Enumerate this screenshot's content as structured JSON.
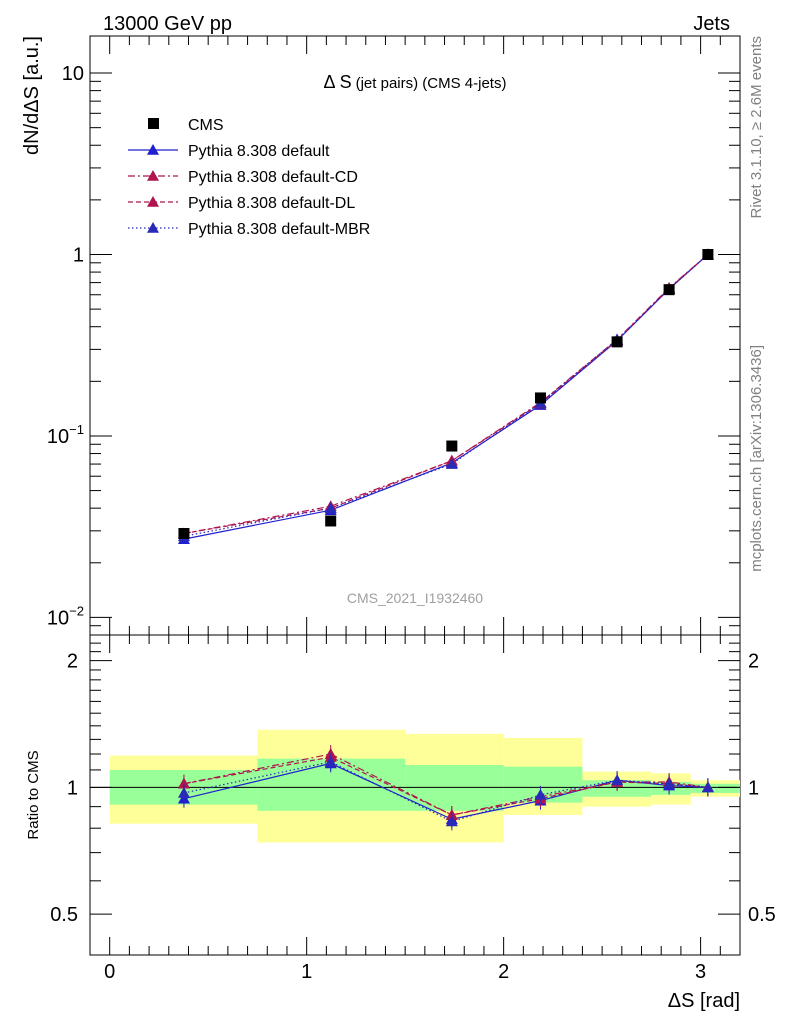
{
  "header": {
    "energy_label": "13000 GeV pp",
    "process_label": "Jets",
    "side_label_top": "Rivet 3.1.10, ≥ 2.6M events",
    "side_label_bottom": "mcplots.cern.ch [arXiv:1306.3436]",
    "watermark": "CMS_2021_I1932460"
  },
  "chart_data": {
    "type": "line",
    "title": "Δ S (jet pairs) (CMS 4-jets)",
    "title_main": "Δ S",
    "title_sub": "(jet pairs) (CMS 4-jets)",
    "xlabel": "ΔS [rad]",
    "ylabel": "dN/dΔS [a.u.]",
    "ratio_ylabel": "Ratio to CMS",
    "xlim": [
      -0.1,
      3.2
    ],
    "ylim": [
      0.008,
      16
    ],
    "ylog": true,
    "ratio_ylim": [
      0.4,
      2.3
    ],
    "x_ticks": [
      0,
      1,
      2,
      3
    ],
    "x_tick_labels": [
      "0",
      "1",
      "2",
      "3"
    ],
    "y_ticks": [
      {
        "value": 10,
        "base": "10",
        "exp": ""
      },
      {
        "value": 1,
        "base": "1",
        "exp": ""
      },
      {
        "value": 0.1,
        "base": "10",
        "exp": "−1"
      },
      {
        "value": 0.01,
        "base": "10",
        "exp": "−2"
      }
    ],
    "ratio_y_ticks": [
      0.5,
      1,
      2
    ],
    "ratio_y_tick_labels": [
      "0.5",
      "1",
      "2"
    ],
    "x": [
      0.377,
      1.122,
      1.737,
      2.187,
      2.576,
      2.84,
      3.037
    ],
    "bin_edges": [
      0.0,
      0.75,
      1.5,
      2.0,
      2.4,
      2.75,
      2.95,
      3.2
    ],
    "band_inner": [
      [
        0.91,
        1.1
      ],
      [
        0.88,
        1.17
      ],
      [
        0.88,
        1.13
      ],
      [
        0.92,
        1.12
      ],
      [
        0.95,
        1.04
      ],
      [
        0.96,
        1.03
      ],
      [
        0.97,
        1.02
      ]
    ],
    "band_outer": [
      [
        0.82,
        1.19
      ],
      [
        0.74,
        1.37
      ],
      [
        0.74,
        1.34
      ],
      [
        0.86,
        1.31
      ],
      [
        0.9,
        1.09
      ],
      [
        0.91,
        1.08
      ],
      [
        0.95,
        1.04
      ]
    ],
    "cms": [
      0.029,
      0.034,
      0.088,
      0.162,
      0.33,
      0.64,
      1.0
    ],
    "series": [
      {
        "name": "Pythia 8.308 default",
        "color": "#1f1fd0",
        "dash": "",
        "values": [
          0.027,
          0.039,
          0.071,
          0.148,
          0.335,
          0.645,
          1.0
        ],
        "ratio": [
          0.94,
          1.14,
          0.84,
          0.93,
          1.04,
          1.01,
          1.0
        ]
      },
      {
        "name": "Pythia 8.308 default-CD",
        "color": "#b0134e",
        "dash": "7,3,2,3",
        "values": [
          0.029,
          0.041,
          0.073,
          0.153,
          0.34,
          0.655,
          1.0
        ],
        "ratio": [
          1.02,
          1.2,
          0.86,
          0.95,
          1.03,
          1.03,
          1.0
        ]
      },
      {
        "name": "Pythia 8.308 default-DL",
        "color": "#b0134e",
        "dash": "5,3",
        "values": [
          0.029,
          0.04,
          0.073,
          0.151,
          0.337,
          0.65,
          1.0
        ],
        "ratio": [
          1.02,
          1.18,
          0.86,
          0.94,
          1.03,
          1.02,
          1.0
        ]
      },
      {
        "name": "Pythia 8.308 default-MBR",
        "color": "#2a2ab8",
        "dash": "1.5,2.5",
        "values": [
          0.028,
          0.04,
          0.07,
          0.152,
          0.34,
          0.645,
          1.0
        ],
        "ratio": [
          0.97,
          1.15,
          0.83,
          0.96,
          1.04,
          1.02,
          1.0
        ]
      }
    ],
    "legend_placement": "top-left",
    "legend_cms": "CMS",
    "colors": {
      "band_inner": "#99ff99",
      "band_outer": "#ffff99",
      "data": "#000000"
    }
  }
}
